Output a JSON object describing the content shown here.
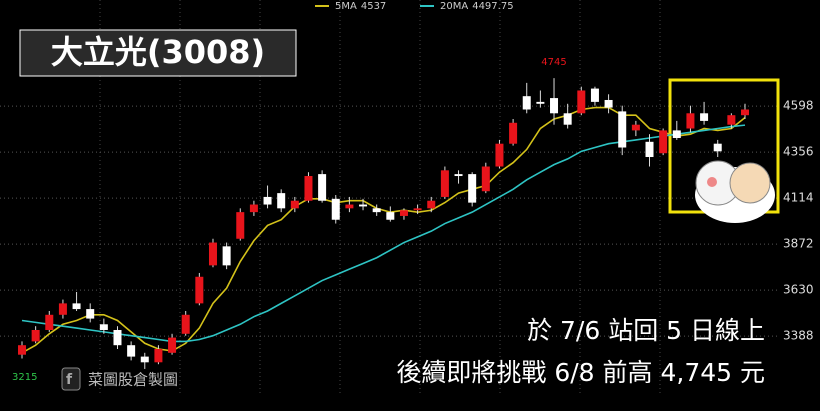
{
  "chart_data": {
    "type": "candlestick",
    "title": "大立光(3008)",
    "ylim": [
      3078,
      5156
    ],
    "yticks": [
      3388,
      3630,
      3872,
      4114,
      4356,
      4598
    ],
    "grid": true,
    "up_color": "#e8141b",
    "down_color": "#ffffff",
    "open": [
      3290,
      3360,
      3420,
      3500,
      3560,
      3530,
      3450,
      3420,
      3340,
      3280,
      3250,
      3300,
      3400,
      3560,
      3760,
      3860,
      3900,
      4040,
      4120,
      4140,
      4060,
      4100,
      4240,
      4110,
      4060,
      4080,
      4060,
      4040,
      4020,
      4050,
      4060,
      4120,
      4240,
      4240,
      4150,
      4280,
      4400,
      4650,
      4620,
      4640,
      4560,
      4560,
      4690,
      4630,
      4570,
      4470,
      4410,
      4350,
      4470,
      4480,
      4560,
      4400,
      4500,
      4550
    ],
    "high": [
      3360,
      3440,
      3520,
      3580,
      3620,
      3560,
      3480,
      3440,
      3360,
      3300,
      3340,
      3400,
      3520,
      3720,
      3900,
      3880,
      4060,
      4100,
      4180,
      4160,
      4120,
      4250,
      4260,
      4130,
      4120,
      4110,
      4080,
      4070,
      4060,
      4080,
      4120,
      4280,
      4260,
      4250,
      4300,
      4420,
      4530,
      4720,
      4680,
      4745,
      4610,
      4700,
      4700,
      4660,
      4600,
      4520,
      4450,
      4480,
      4520,
      4600,
      4620,
      4420,
      4560,
      4610
    ],
    "low": [
      3270,
      3350,
      3410,
      3480,
      3520,
      3460,
      3400,
      3320,
      3260,
      3215,
      3240,
      3290,
      3390,
      3550,
      3750,
      3740,
      3890,
      4020,
      4060,
      4040,
      4040,
      4090,
      4090,
      3980,
      4040,
      4050,
      4020,
      3990,
      4000,
      4030,
      4040,
      4110,
      4190,
      4070,
      4140,
      4270,
      4390,
      4560,
      4590,
      4500,
      4480,
      4550,
      4600,
      4560,
      4340,
      4440,
      4280,
      4340,
      4420,
      4460,
      4500,
      4330,
      4480,
      4530
    ],
    "close": [
      3340,
      3420,
      3500,
      3560,
      3530,
      3480,
      3420,
      3340,
      3280,
      3250,
      3320,
      3380,
      3500,
      3700,
      3880,
      3760,
      4040,
      4080,
      4080,
      4060,
      4100,
      4230,
      4100,
      4000,
      4080,
      4070,
      4040,
      4000,
      4050,
      4060,
      4100,
      4260,
      4230,
      4090,
      4280,
      4400,
      4510,
      4580,
      4610,
      4560,
      4500,
      4680,
      4620,
      4590,
      4380,
      4500,
      4330,
      4470,
      4430,
      4560,
      4520,
      4360,
      4550,
      4580
    ],
    "series": [
      {
        "name": "5MA",
        "color": "#d4c21a",
        "values": [
          3300,
          3340,
          3400,
          3450,
          3470,
          3500,
          3500,
          3470,
          3410,
          3350,
          3320,
          3310,
          3350,
          3430,
          3560,
          3640,
          3780,
          3890,
          3970,
          4000,
          4070,
          4110,
          4110,
          4090,
          4100,
          4100,
          4060,
          4040,
          4050,
          4040,
          4050,
          4090,
          4140,
          4160,
          4180,
          4250,
          4300,
          4370,
          4480,
          4530,
          4550,
          4580,
          4590,
          4590,
          4550,
          4550,
          4480,
          4460,
          4440,
          4450,
          4480,
          4470,
          4480,
          4537
        ]
      },
      {
        "name": "20MA",
        "color": "#2ec4c4",
        "values": [
          3470,
          3460,
          3450,
          3440,
          3430,
          3420,
          3410,
          3400,
          3390,
          3380,
          3370,
          3360,
          3360,
          3370,
          3390,
          3420,
          3450,
          3490,
          3520,
          3560,
          3600,
          3640,
          3680,
          3710,
          3740,
          3770,
          3800,
          3840,
          3880,
          3910,
          3940,
          3980,
          4010,
          4040,
          4080,
          4120,
          4160,
          4210,
          4250,
          4290,
          4320,
          4360,
          4380,
          4400,
          4410,
          4420,
          4430,
          4440,
          4450,
          4460,
          4470,
          4480,
          4490,
          4497.75
        ]
      }
    ],
    "annotations": [
      "於 7/6 站回 5 日線上",
      "後續即將挑戰 6/8 前高 4,745 元"
    ],
    "watermark": "菜圖股倉製圖"
  }
}
